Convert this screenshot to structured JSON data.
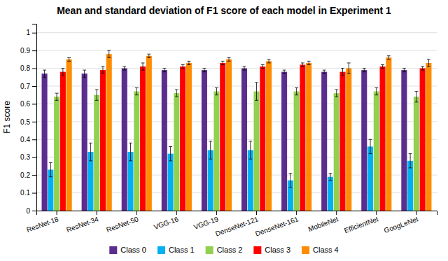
{
  "chart_data": {
    "type": "bar",
    "title": "Mean and standard deviation of F1 score of each model in Experiment 1",
    "y_label": "F1 score",
    "categories": [
      "ResNet-18",
      "ResNet-34",
      "ResNet-50",
      "VGG-16",
      "VGG-19",
      "DenseNet-121",
      "DenseNet-161",
      "MobileNet",
      "EfficientNet",
      "GoogLeNet"
    ],
    "series": [
      {
        "name": "Class 0",
        "color": "#5b2d8e",
        "values": [
          0.77,
          0.77,
          0.8,
          0.79,
          0.79,
          0.8,
          0.78,
          0.78,
          0.79,
          0.79
        ],
        "errors": [
          0.02,
          0.02,
          0.01,
          0.01,
          0.01,
          0.01,
          0.01,
          0.01,
          0.01,
          0.01
        ]
      },
      {
        "name": "Class 1",
        "color": "#00b0f0",
        "values": [
          0.23,
          0.33,
          0.33,
          0.32,
          0.34,
          0.34,
          0.17,
          0.19,
          0.36,
          0.28
        ],
        "errors": [
          0.04,
          0.05,
          0.05,
          0.04,
          0.05,
          0.05,
          0.04,
          0.02,
          0.04,
          0.04
        ]
      },
      {
        "name": "Class 2",
        "color": "#92d050",
        "values": [
          0.64,
          0.65,
          0.67,
          0.66,
          0.67,
          0.67,
          0.67,
          0.66,
          0.67,
          0.64
        ],
        "errors": [
          0.02,
          0.03,
          0.02,
          0.02,
          0.02,
          0.05,
          0.02,
          0.02,
          0.02,
          0.03
        ]
      },
      {
        "name": "Class 3",
        "color": "#ff0000",
        "values": [
          0.78,
          0.79,
          0.81,
          0.81,
          0.83,
          0.81,
          0.82,
          0.78,
          0.81,
          0.8
        ],
        "errors": [
          0.02,
          0.02,
          0.02,
          0.01,
          0.01,
          0.01,
          0.01,
          0.02,
          0.01,
          0.01
        ]
      },
      {
        "name": "Class 4",
        "color": "#ff8c00",
        "values": [
          0.85,
          0.88,
          0.87,
          0.83,
          0.85,
          0.84,
          0.83,
          0.8,
          0.86,
          0.83
        ],
        "errors": [
          0.01,
          0.02,
          0.01,
          0.01,
          0.01,
          0.01,
          0.01,
          0.03,
          0.01,
          0.02
        ]
      }
    ],
    "ylim": [
      0,
      1.05
    ],
    "yticks": [
      0,
      0.1,
      0.2,
      0.3,
      0.4,
      0.5,
      0.6,
      0.7,
      0.8,
      0.9,
      1
    ],
    "grid": true,
    "legend": "bottom"
  }
}
